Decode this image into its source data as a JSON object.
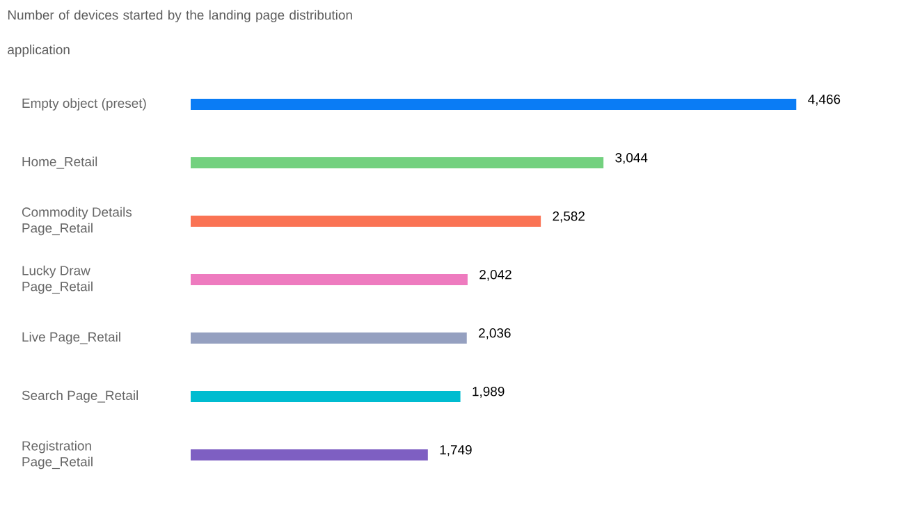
{
  "chart_data": {
    "type": "bar",
    "orientation": "horizontal",
    "title": "Number of devices started by the landing page distribution application",
    "categories": [
      "Empty object (preset)",
      "Home_Retail",
      "Commodity Details Page_Retail",
      "Lucky Draw Page_Retail",
      "Live Page_Retail",
      "Search Page_Retail",
      "Registration Page_Retail"
    ],
    "values": [
      4466,
      3044,
      2582,
      2042,
      2036,
      1989,
      1749
    ],
    "value_labels": [
      "4,466",
      "3,044",
      "2,582",
      "2,042",
      "2,036",
      "1,989",
      "1,749"
    ],
    "colors": [
      "#0a7cf5",
      "#73d17f",
      "#fa7354",
      "#ee7bbf",
      "#95a0c0",
      "#00bcd0",
      "#7e5fc2"
    ]
  }
}
